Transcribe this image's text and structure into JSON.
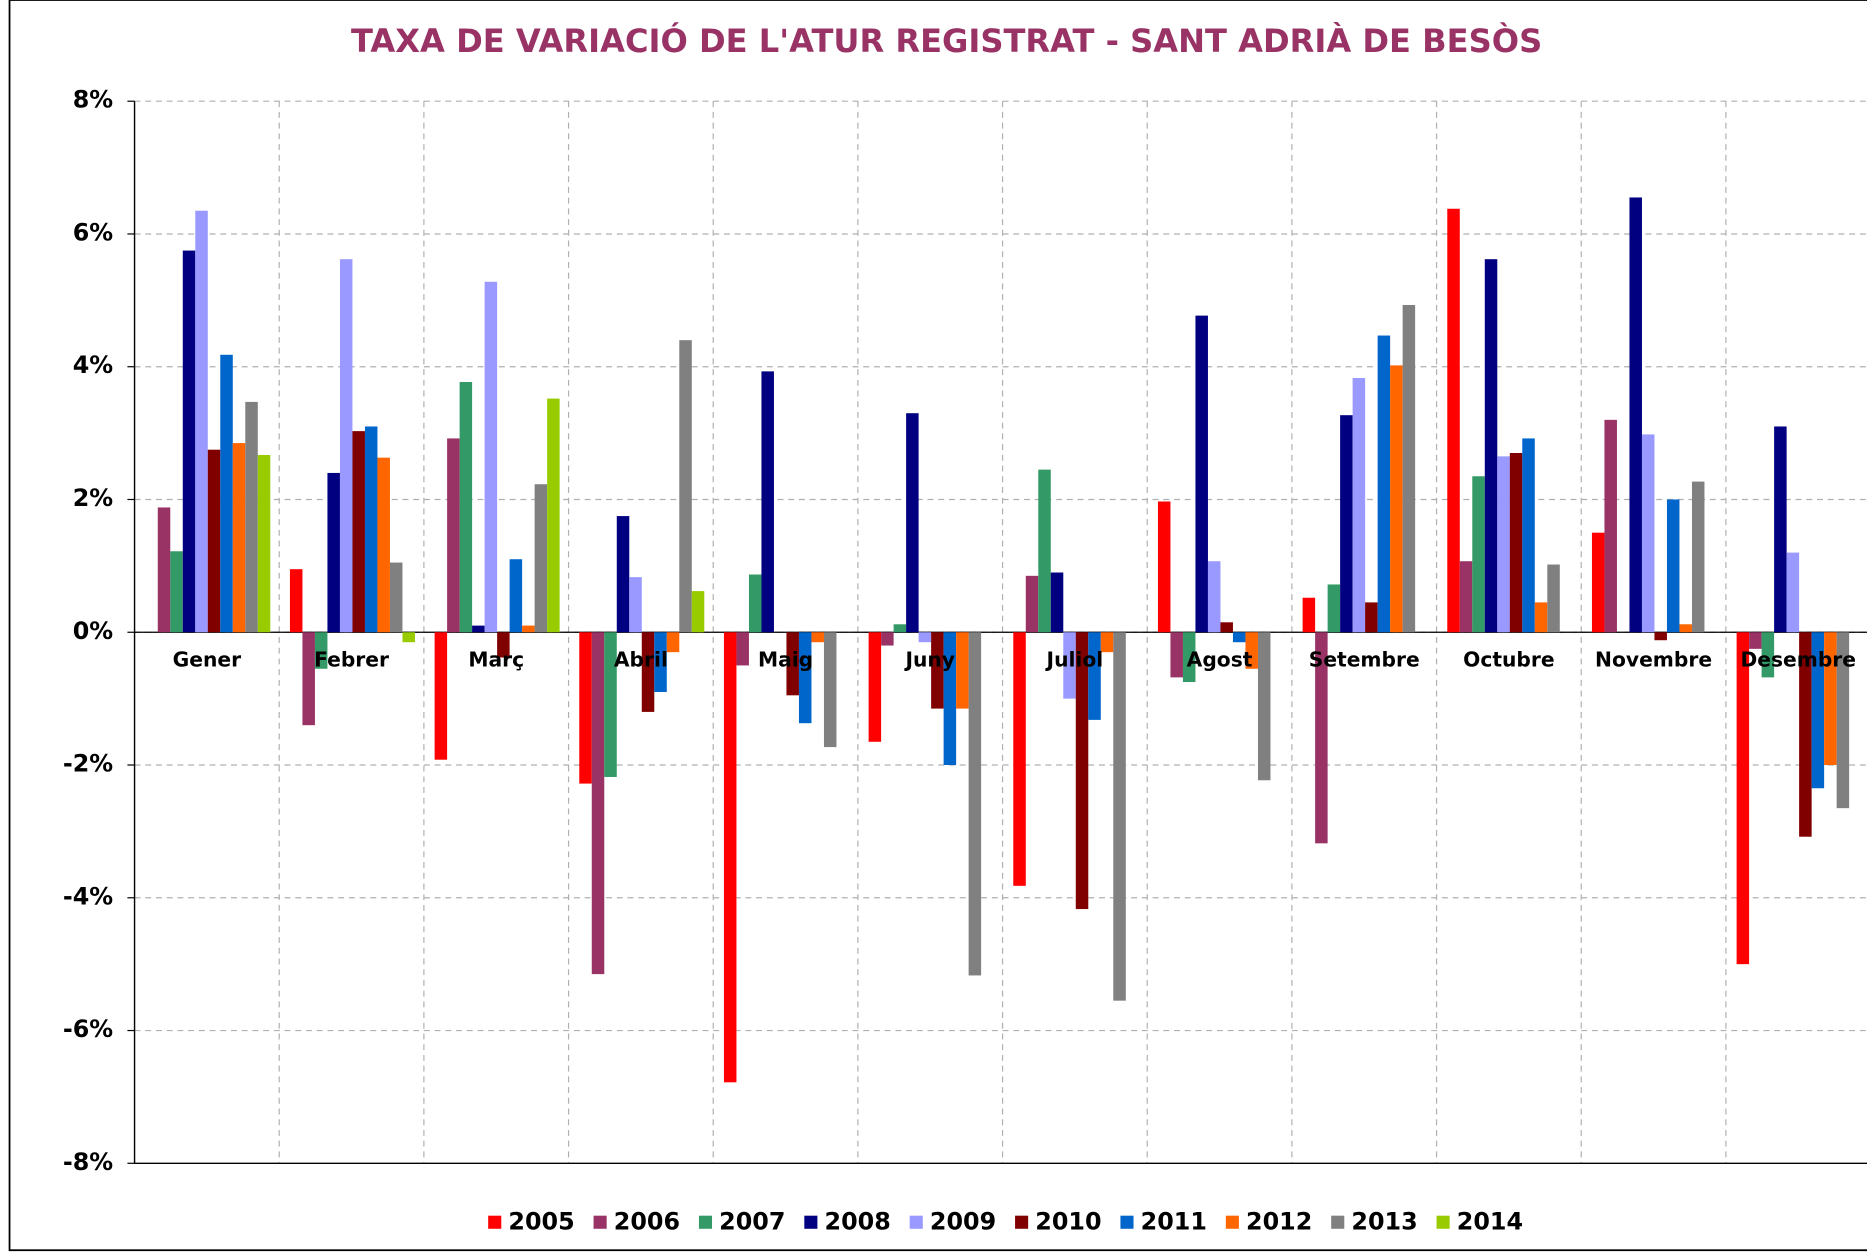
{
  "chart_data": {
    "type": "bar",
    "title": "TAXA DE VARIACIÓ DE L'ATUR REGISTRAT - SANT ADRIÀ DE BESÒS",
    "categories": [
      "Gener",
      "Febrer",
      "Març",
      "Abril",
      "Maig",
      "Juny",
      "Juliol",
      "Agost",
      "Setembre",
      "Octubre",
      "Novembre",
      "Desembre"
    ],
    "series": [
      {
        "name": "2005",
        "color": "#ff0000",
        "values": [
          null,
          0.95,
          -1.92,
          -2.28,
          -6.78,
          -1.65,
          -3.82,
          1.97,
          0.52,
          6.38,
          1.5,
          -5.0
        ]
      },
      {
        "name": "2006",
        "color": "#993366",
        "values": [
          1.88,
          -1.4,
          2.92,
          -5.15,
          -0.5,
          -0.2,
          0.85,
          -0.68,
          -3.18,
          1.07,
          3.2,
          -0.25
        ]
      },
      {
        "name": "2007",
        "color": "#339966",
        "values": [
          1.22,
          -0.55,
          3.77,
          -2.18,
          0.87,
          0.12,
          2.45,
          -0.75,
          0.72,
          2.35,
          null,
          -0.68
        ]
      },
      {
        "name": "2008",
        "color": "#000080",
        "values": [
          5.75,
          2.4,
          0.1,
          1.75,
          3.93,
          3.3,
          0.9,
          4.77,
          3.27,
          5.62,
          6.55,
          3.1
        ]
      },
      {
        "name": "2009",
        "color": "#9999ff",
        "values": [
          6.35,
          5.62,
          5.28,
          0.83,
          null,
          -0.15,
          -1.0,
          1.07,
          3.83,
          2.65,
          2.98,
          1.2
        ]
      },
      {
        "name": "2010",
        "color": "#800000",
        "values": [
          2.75,
          3.03,
          -0.38,
          -1.2,
          -0.95,
          -1.15,
          -4.17,
          0.15,
          0.45,
          2.7,
          -0.12,
          -3.08
        ]
      },
      {
        "name": "2011",
        "color": "#0066cc",
        "values": [
          4.18,
          3.1,
          1.1,
          -0.9,
          -1.37,
          -2.0,
          -1.32,
          -0.15,
          4.47,
          2.92,
          2.0,
          -2.35
        ]
      },
      {
        "name": "2012",
        "color": "#ff6600",
        "values": [
          2.85,
          2.63,
          0.1,
          -0.3,
          -0.15,
          -1.15,
          -0.3,
          -0.55,
          4.02,
          0.45,
          0.12,
          -2.0
        ]
      },
      {
        "name": "2013",
        "color": "#808080",
        "values": [
          3.47,
          1.05,
          2.23,
          4.4,
          -1.73,
          -5.17,
          -5.55,
          -2.23,
          4.93,
          1.02,
          2.27,
          -2.65
        ]
      },
      {
        "name": "2014",
        "color": "#99cc00",
        "values": [
          2.67,
          -0.15,
          3.52,
          0.62,
          null,
          null,
          null,
          null,
          null,
          null,
          null,
          null
        ]
      }
    ],
    "ylim": [
      -8,
      8
    ],
    "yticks": [
      {
        "value": -8,
        "label": "-8%"
      },
      {
        "value": -6,
        "label": "-6%"
      },
      {
        "value": -4,
        "label": "-4%"
      },
      {
        "value": -2,
        "label": "-2%"
      },
      {
        "value": 0,
        "label": "0%"
      },
      {
        "value": 2,
        "label": "2%"
      },
      {
        "value": 4,
        "label": "4%"
      },
      {
        "value": 6,
        "label": "6%"
      },
      {
        "value": 8,
        "label": "8%"
      }
    ],
    "grid": true,
    "legend": "bottom"
  }
}
